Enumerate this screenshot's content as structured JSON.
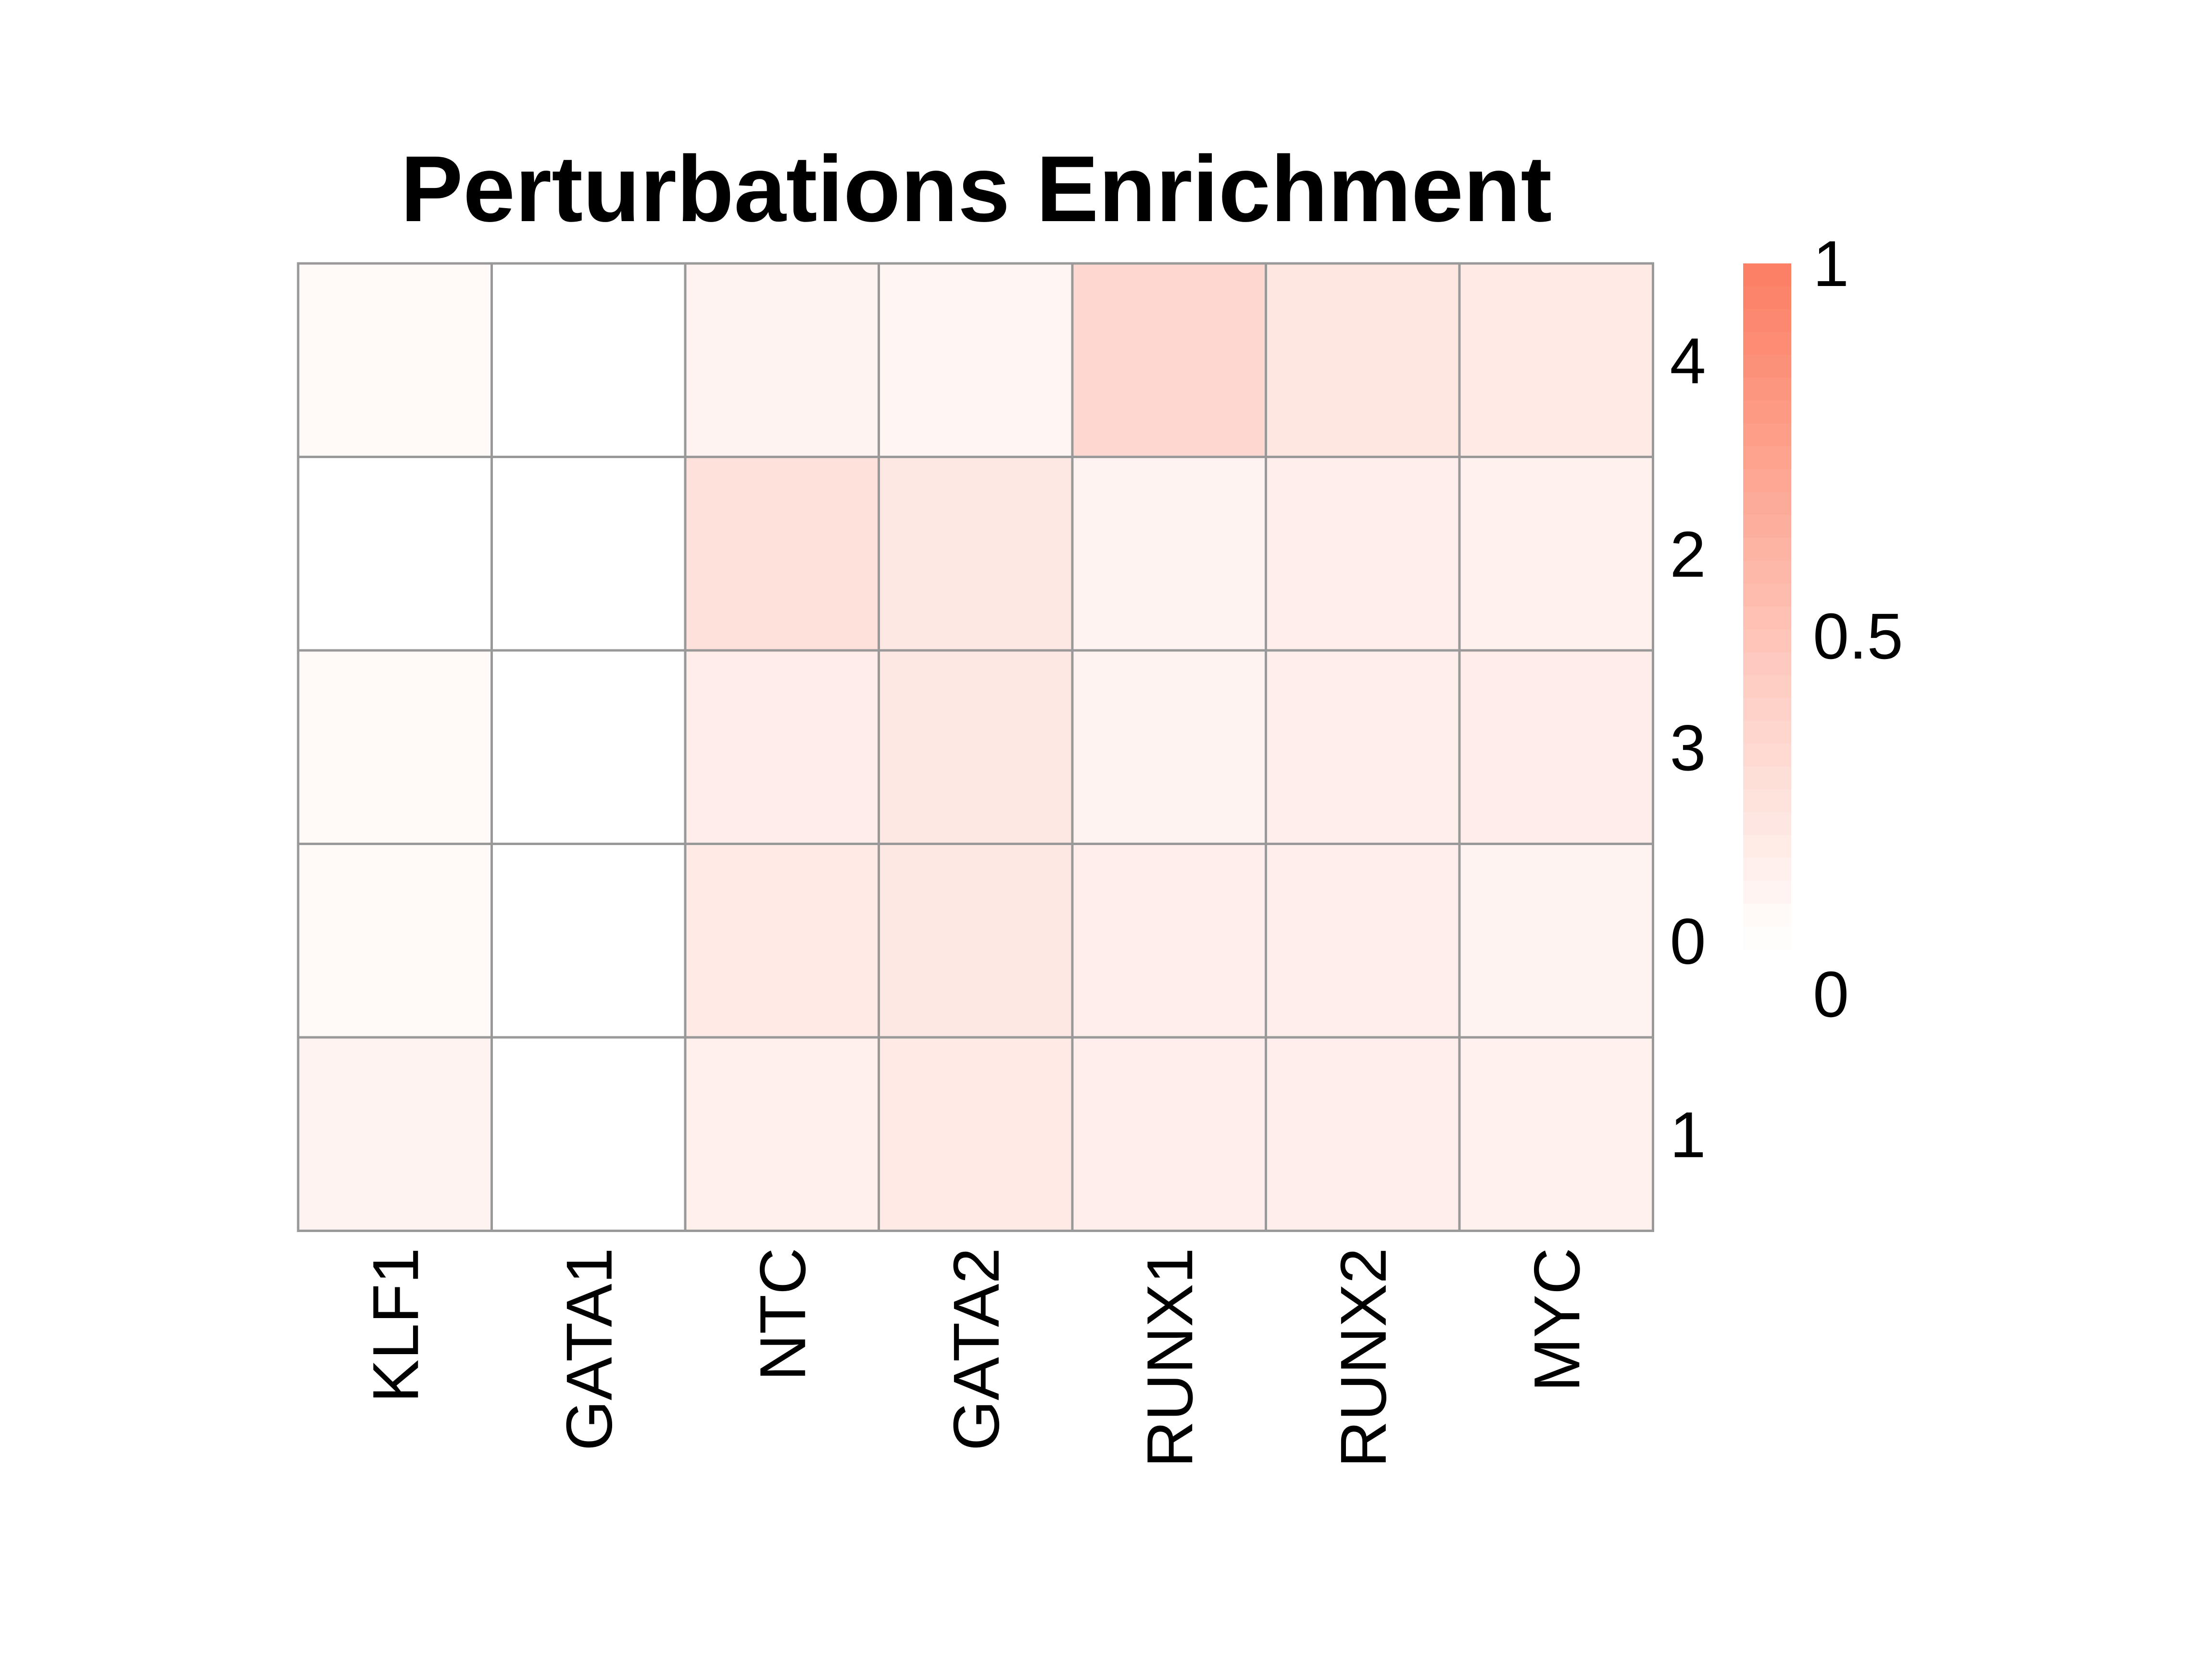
{
  "chart_data": {
    "type": "heatmap",
    "title": "Perturbations Enrichment",
    "xlabel": "",
    "ylabel": "",
    "columns": [
      "KLF1",
      "GATA1",
      "NTC",
      "GATA2",
      "RUNX1",
      "RUNX2",
      "MYC"
    ],
    "rows": [
      "4",
      "2",
      "3",
      "0",
      "1"
    ],
    "values": [
      [
        0.05,
        0.0,
        0.09,
        0.07,
        0.3,
        0.19,
        0.16
      ],
      [
        0.0,
        0.0,
        0.23,
        0.18,
        0.09,
        0.13,
        0.11
      ],
      [
        0.05,
        0.0,
        0.14,
        0.18,
        0.09,
        0.13,
        0.14
      ],
      [
        0.05,
        0.0,
        0.16,
        0.18,
        0.13,
        0.13,
        0.09
      ],
      [
        0.09,
        0.0,
        0.12,
        0.16,
        0.13,
        0.13,
        0.11
      ]
    ],
    "color_scale": {
      "low_color": "#ffffff",
      "high_color": "#fc7e62",
      "min": 0,
      "max": 1,
      "ticks": [
        "1",
        "0.5",
        "0"
      ]
    },
    "grid_color": "#999999",
    "legend_position": "right"
  }
}
